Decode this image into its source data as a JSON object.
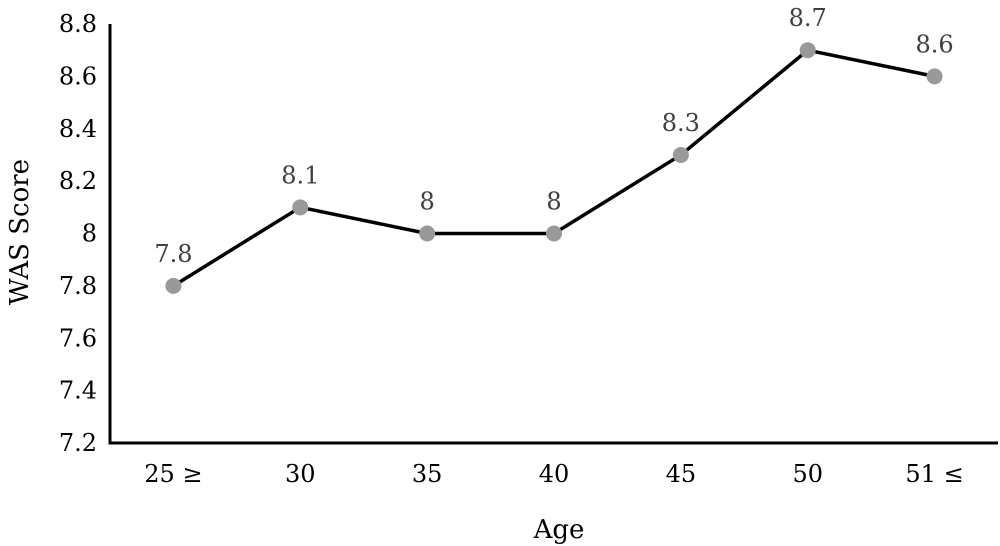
{
  "chart_data": {
    "type": "line",
    "title": "",
    "xlabel": "Age",
    "ylabel": "WAS Score",
    "categories": [
      "25 ≥",
      "30",
      "35",
      "40",
      "45",
      "50",
      "51 ≤"
    ],
    "series": [
      {
        "values": [
          7.8,
          8.1,
          8,
          8,
          8.3,
          8.7,
          8.6
        ],
        "data_labels": [
          "7.8",
          "8.1",
          "8",
          "8",
          "8.3",
          "8.7",
          "8.6"
        ]
      }
    ],
    "ylim": [
      7.2,
      8.8
    ],
    "yticks": [
      "7.2",
      "7.4",
      "7.6",
      "7.8",
      "8",
      "8.2",
      "8.4",
      "8.6",
      "8.8"
    ],
    "grid": false,
    "legend": "none",
    "colors": {
      "line": "#000000",
      "marker": "#999999",
      "axis": "#000000",
      "data_label": "#404040"
    }
  }
}
